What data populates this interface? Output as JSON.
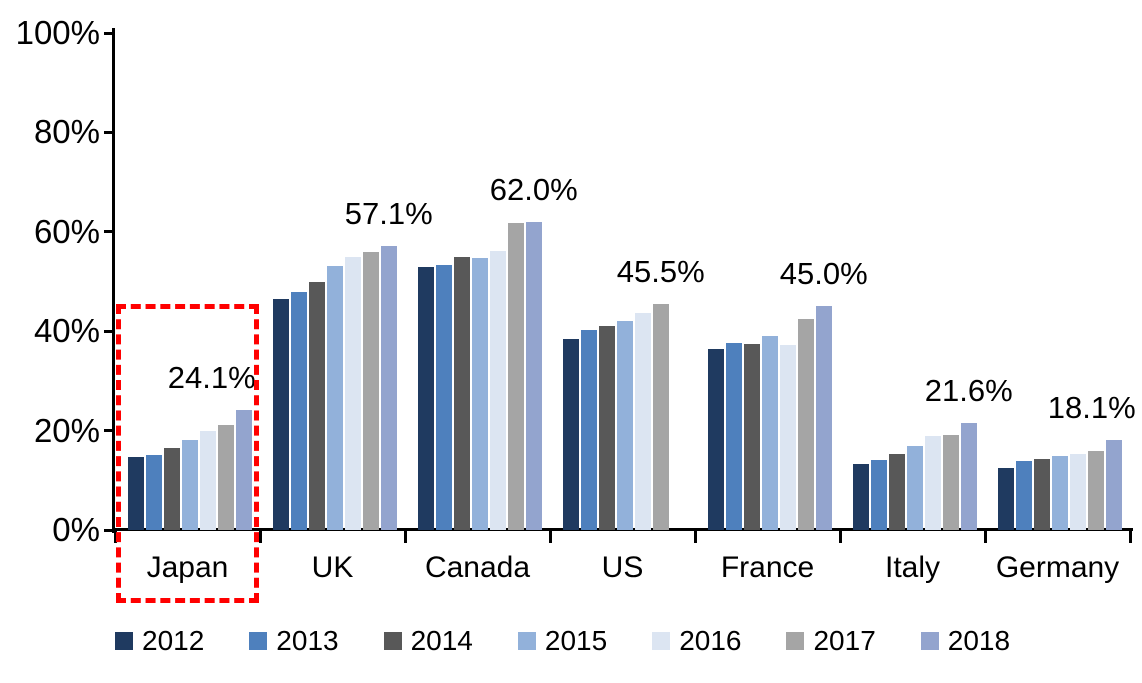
{
  "chart_data": {
    "type": "bar",
    "title": "",
    "xlabel": "",
    "ylabel": "",
    "ylim": [
      0,
      100
    ],
    "yticks": [
      "0%",
      "20%",
      "40%",
      "60%",
      "80%",
      "100%"
    ],
    "grid": false,
    "legend_position": "bottom",
    "categories": [
      "Japan",
      "UK",
      "Canada",
      "US",
      "France",
      "Italy",
      "Germany"
    ],
    "series": [
      {
        "name": "2012",
        "color": "#1F3A60",
        "values": [
          14.7,
          46.4,
          53.0,
          38.4,
          36.5,
          13.2,
          12.5
        ]
      },
      {
        "name": "2013",
        "color": "#4E80BD",
        "values": [
          15.0,
          47.8,
          53.4,
          40.2,
          37.7,
          14.1,
          13.9
        ]
      },
      {
        "name": "2014",
        "color": "#585858",
        "values": [
          16.5,
          49.8,
          54.9,
          41.1,
          37.5,
          15.3,
          14.3
        ]
      },
      {
        "name": "2015",
        "color": "#92B1DA",
        "values": [
          18.1,
          53.1,
          54.7,
          42.1,
          39.1,
          16.9,
          14.8
        ]
      },
      {
        "name": "2016",
        "color": "#DCE5F2",
        "values": [
          20.0,
          54.9,
          56.2,
          43.6,
          37.3,
          18.9,
          15.3
        ]
      },
      {
        "name": "2017",
        "color": "#A5A5A5",
        "values": [
          21.1,
          55.9,
          61.8,
          45.5,
          42.4,
          19.1,
          15.9
        ]
      },
      {
        "name": "2018",
        "color": "#93A4CE",
        "values": [
          24.1,
          57.1,
          62.0,
          null,
          45.0,
          21.6,
          18.1
        ]
      }
    ],
    "annotations": [
      {
        "category": "Japan",
        "text": "24.1%"
      },
      {
        "category": "UK",
        "text": "57.1%"
      },
      {
        "category": "Canada",
        "text": "62.0%"
      },
      {
        "category": "US",
        "text": "45.5%"
      },
      {
        "category": "France",
        "text": "45.0%"
      },
      {
        "category": "Italy",
        "text": "21.6%"
      },
      {
        "category": "Germany",
        "text": "18.1%"
      }
    ],
    "highlight": {
      "category": "Japan",
      "style": "dashed-rectangle",
      "color": "#FF0000"
    }
  }
}
